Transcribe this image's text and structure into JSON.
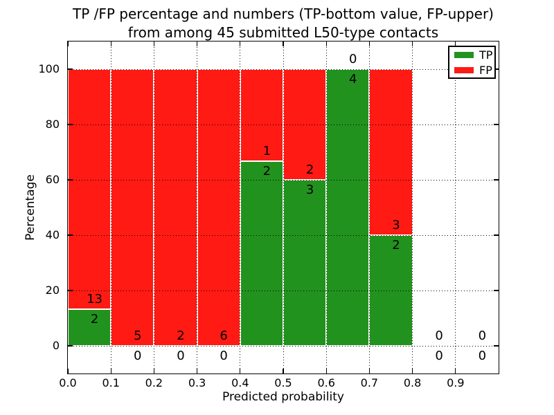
{
  "chart_data": {
    "type": "bar",
    "stacked": true,
    "title": "TP /FP percentage and numbers (TP-bottom value, FP-upper)\nfrom among 45 submitted L50-type contacts",
    "title_lines": [
      "TP /FP percentage and numbers (TP-bottom value, FP-upper)",
      "from among 45 submitted L50-type contacts"
    ],
    "xlabel": "Predicted probability",
    "ylabel": "Percentage",
    "xlim": [
      0.0,
      1.0
    ],
    "ylim": [
      -10,
      110
    ],
    "grid": true,
    "legend_position": "upper right",
    "legend": [
      {
        "label": "TP",
        "color": "#22921e"
      },
      {
        "label": "FP",
        "color": "#ff1a13"
      }
    ],
    "colors": {
      "tp": "#22921e",
      "fp": "#ff1a13"
    },
    "xticks": [
      0.0,
      0.1,
      0.2,
      0.3,
      0.4,
      0.5,
      0.6,
      0.7,
      0.8,
      0.9
    ],
    "xtick_labels": [
      "0.0",
      "0.1",
      "0.2",
      "0.3",
      "0.4",
      "0.5",
      "0.6",
      "0.7",
      "0.8",
      "0.9"
    ],
    "yticks": [
      0,
      20,
      40,
      60,
      80,
      100
    ],
    "ytick_labels": [
      "0",
      "20",
      "40",
      "60",
      "80",
      "100"
    ],
    "bin_width": 0.1,
    "bins": [
      {
        "x0": 0.0,
        "tp": 2,
        "fp": 13,
        "tp_pct": 13.333,
        "fp_pct": 86.667
      },
      {
        "x0": 0.1,
        "tp": 0,
        "fp": 5,
        "tp_pct": 0,
        "fp_pct": 100
      },
      {
        "x0": 0.2,
        "tp": 0,
        "fp": 2,
        "tp_pct": 0,
        "fp_pct": 100
      },
      {
        "x0": 0.3,
        "tp": 0,
        "fp": 6,
        "tp_pct": 0,
        "fp_pct": 100
      },
      {
        "x0": 0.4,
        "tp": 2,
        "fp": 1,
        "tp_pct": 66.667,
        "fp_pct": 33.333
      },
      {
        "x0": 0.5,
        "tp": 3,
        "fp": 2,
        "tp_pct": 60,
        "fp_pct": 40
      },
      {
        "x0": 0.6,
        "tp": 4,
        "fp": 0,
        "tp_pct": 100,
        "fp_pct": 0
      },
      {
        "x0": 0.7,
        "tp": 2,
        "fp": 3,
        "tp_pct": 40,
        "fp_pct": 60
      },
      {
        "x0": 0.8,
        "tp": 0,
        "fp": 0,
        "tp_pct": 0,
        "fp_pct": 0
      },
      {
        "x0": 0.9,
        "tp": 0,
        "fp": 0,
        "tp_pct": 0,
        "fp_pct": 0
      }
    ],
    "total_contacts": 45
  }
}
